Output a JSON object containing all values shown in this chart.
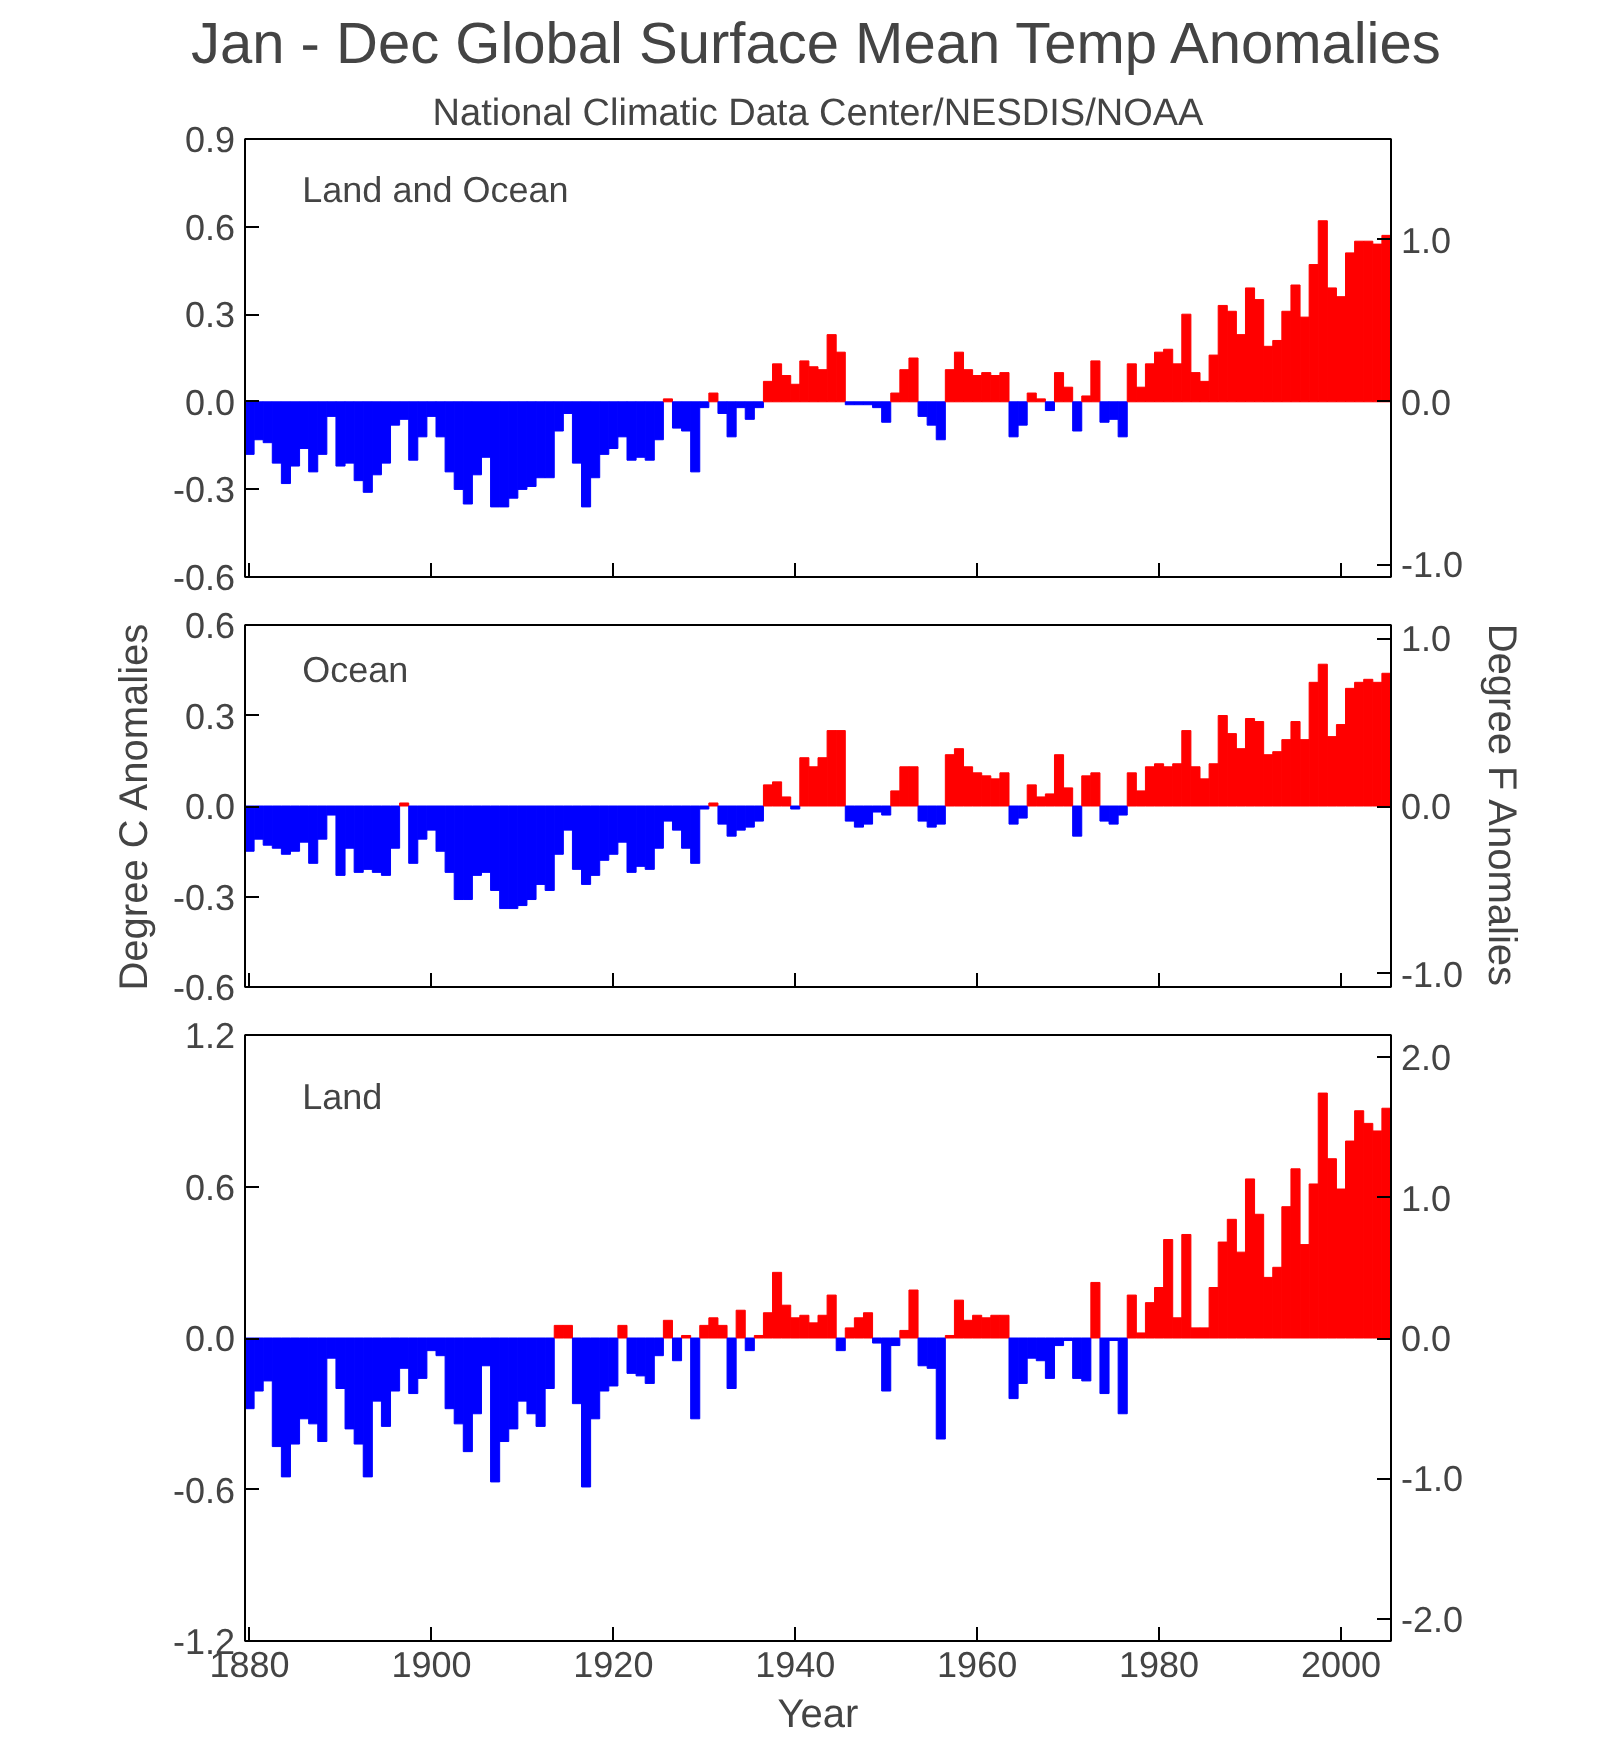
{
  "chart_data": [
    {
      "type": "bar",
      "title": "Jan - Dec Global Surface Mean Temp Anomalies",
      "subtitle": "National Climatic Data Center/NESDIS/NOAA",
      "annotations": [
        "Land and Ocean"
      ],
      "x": [
        1880,
        1881,
        1882,
        1883,
        1884,
        1885,
        1886,
        1887,
        1888,
        1889,
        1890,
        1891,
        1892,
        1893,
        1894,
        1895,
        1896,
        1897,
        1898,
        1899,
        1900,
        1901,
        1902,
        1903,
        1904,
        1905,
        1906,
        1907,
        1908,
        1909,
        1910,
        1911,
        1912,
        1913,
        1914,
        1915,
        1916,
        1917,
        1918,
        1919,
        1920,
        1921,
        1922,
        1923,
        1924,
        1925,
        1926,
        1927,
        1928,
        1929,
        1930,
        1931,
        1932,
        1933,
        1934,
        1935,
        1936,
        1937,
        1938,
        1939,
        1940,
        1941,
        1942,
        1943,
        1944,
        1945,
        1946,
        1947,
        1948,
        1949,
        1950,
        1951,
        1952,
        1953,
        1954,
        1955,
        1956,
        1957,
        1958,
        1959,
        1960,
        1961,
        1962,
        1963,
        1964,
        1965,
        1966,
        1967,
        1968,
        1969,
        1970,
        1971,
        1972,
        1973,
        1974,
        1975,
        1976,
        1977,
        1978,
        1979,
        1980,
        1981,
        1982,
        1983,
        1984,
        1985,
        1986,
        1987,
        1988,
        1989,
        1990,
        1991,
        1992,
        1993,
        1994,
        1995,
        1996,
        1997,
        1998,
        1999,
        2000,
        2001,
        2002,
        2003,
        2004,
        2005
      ],
      "values": [
        -0.18,
        -0.13,
        -0.14,
        -0.21,
        -0.28,
        -0.22,
        -0.16,
        -0.24,
        -0.18,
        -0.05,
        -0.22,
        -0.21,
        -0.27,
        -0.31,
        -0.25,
        -0.21,
        -0.08,
        -0.06,
        -0.2,
        -0.12,
        -0.05,
        -0.12,
        -0.24,
        -0.3,
        -0.35,
        -0.25,
        -0.19,
        -0.36,
        -0.36,
        -0.33,
        -0.3,
        -0.29,
        -0.26,
        -0.26,
        -0.1,
        -0.04,
        -0.21,
        -0.36,
        -0.26,
        -0.18,
        -0.16,
        -0.12,
        -0.2,
        -0.19,
        -0.2,
        -0.13,
        0.01,
        -0.09,
        -0.1,
        -0.24,
        -0.02,
        0.03,
        -0.04,
        -0.12,
        -0.02,
        -0.06,
        -0.02,
        0.07,
        0.13,
        0.09,
        0.06,
        0.14,
        0.12,
        0.11,
        0.23,
        0.17,
        -0.01,
        -0.01,
        -0.01,
        -0.02,
        -0.07,
        0.03,
        0.11,
        0.15,
        -0.05,
        -0.08,
        -0.13,
        0.11,
        0.17,
        0.11,
        0.09,
        0.1,
        0.09,
        0.1,
        -0.12,
        -0.08,
        0.03,
        0.01,
        -0.03,
        0.1,
        0.05,
        -0.1,
        0.02,
        0.14,
        -0.07,
        -0.06,
        -0.12,
        0.13,
        0.05,
        0.13,
        0.17,
        0.18,
        0.13,
        0.3,
        0.1,
        0.07,
        0.16,
        0.33,
        0.31,
        0.23,
        0.39,
        0.35,
        0.19,
        0.21,
        0.31,
        0.4,
        0.29,
        0.47,
        0.62,
        0.39,
        0.36,
        0.51,
        0.55,
        0.55,
        0.54,
        0.57
      ],
      "colors": [
        "#0000ff",
        "#0000ff",
        "#0000ff",
        "#0000ff",
        "#0000ff",
        "#0000ff",
        "#0000ff",
        "#0000ff",
        "#0000ff",
        "#0000ff",
        "#0000ff",
        "#0000ff",
        "#0000ff",
        "#0000ff",
        "#0000ff",
        "#0000ff",
        "#0000ff",
        "#0000ff",
        "#0000ff",
        "#0000ff",
        "#0000ff",
        "#0000ff",
        "#0000ff",
        "#0000ff",
        "#0000ff",
        "#0000ff",
        "#0000ff",
        "#0000ff",
        "#0000ff",
        "#0000ff",
        "#0000ff",
        "#0000ff",
        "#0000ff",
        "#0000ff",
        "#0000ff",
        "#0000ff",
        "#0000ff",
        "#0000ff",
        "#0000ff",
        "#0000ff",
        "#0000ff",
        "#0000ff",
        "#0000ff",
        "#0000ff",
        "#0000ff",
        "#0000ff",
        "#ff0000",
        "#0000ff",
        "#0000ff",
        "#0000ff",
        "#0000ff",
        "#ff0000",
        "#0000ff",
        "#0000ff",
        "#0000ff",
        "#0000ff",
        "#0000ff",
        "#ff0000",
        "#ff0000",
        "#ff0000",
        "#ff0000",
        "#ff0000",
        "#ff0000",
        "#ff0000",
        "#ff0000",
        "#ff0000",
        "#0000ff",
        "#0000ff",
        "#0000ff",
        "#0000ff",
        "#0000ff",
        "#ff0000",
        "#ff0000",
        "#ff0000",
        "#0000ff",
        "#0000ff",
        "#0000ff",
        "#ff0000",
        "#ff0000",
        "#ff0000",
        "#ff0000",
        "#ff0000",
        "#ff0000",
        "#ff0000",
        "#0000ff",
        "#0000ff",
        "#ff0000",
        "#ff0000",
        "#0000ff",
        "#ff0000",
        "#ff0000",
        "#0000ff",
        "#ff0000",
        "#ff0000",
        "#0000ff",
        "#0000ff",
        "#0000ff",
        "#ff0000",
        "#ff0000",
        "#ff0000",
        "#ff0000",
        "#ff0000",
        "#ff0000",
        "#ff0000",
        "#ff0000",
        "#ff0000",
        "#ff0000",
        "#ff0000",
        "#ff0000",
        "#ff0000",
        "#ff0000",
        "#ff0000",
        "#ff0000",
        "#ff0000",
        "#ff0000",
        "#ff0000",
        "#ff0000",
        "#ff0000",
        "#ff0000",
        "#ff0000",
        "#ff0000",
        "#ff0000",
        "#ff0000",
        "#ff0000",
        "#ff0000",
        "#ff0000"
      ],
      "xlim": [
        1879.5,
        2005.5
      ],
      "xticks": [
        1880,
        1900,
        1920,
        1940,
        1960,
        1980,
        2000
      ],
      "ylim": [
        -0.6,
        0.9
      ],
      "yticks": [
        {
          "value": -0.6,
          "label": "-0.6"
        },
        {
          "value": -0.3,
          "label": "-0.3"
        },
        {
          "value": 0,
          "label": "0.0"
        },
        {
          "value": 0.3,
          "label": "0.3"
        },
        {
          "value": 0.6,
          "label": "0.6"
        },
        {
          "value": 0.9,
          "label": "0.9"
        }
      ],
      "y2lim": [
        -1.08,
        1.62
      ],
      "y2ticks": [
        {
          "value": -1,
          "label": "-1.0"
        },
        {
          "value": 0,
          "label": "0.0"
        },
        {
          "value": 1,
          "label": "1.0"
        }
      ],
      "tick_labels": "y"
    },
    {
      "type": "bar",
      "ylabel": "Degree C Anomalies",
      "y2label": "Degree F Anomalies",
      "annotations": [
        "Ocean"
      ],
      "x": [
        1880,
        1881,
        1882,
        1883,
        1884,
        1885,
        1886,
        1887,
        1888,
        1889,
        1890,
        1891,
        1892,
        1893,
        1894,
        1895,
        1896,
        1897,
        1898,
        1899,
        1900,
        1901,
        1902,
        1903,
        1904,
        1905,
        1906,
        1907,
        1908,
        1909,
        1910,
        1911,
        1912,
        1913,
        1914,
        1915,
        1916,
        1917,
        1918,
        1919,
        1920,
        1921,
        1922,
        1923,
        1924,
        1925,
        1926,
        1927,
        1928,
        1929,
        1930,
        1931,
        1932,
        1933,
        1934,
        1935,
        1936,
        1937,
        1938,
        1939,
        1940,
        1941,
        1942,
        1943,
        1944,
        1945,
        1946,
        1947,
        1948,
        1949,
        1950,
        1951,
        1952,
        1953,
        1954,
        1955,
        1956,
        1957,
        1958,
        1959,
        1960,
        1961,
        1962,
        1963,
        1964,
        1965,
        1966,
        1967,
        1968,
        1969,
        1970,
        1971,
        1972,
        1973,
        1974,
        1975,
        1976,
        1977,
        1978,
        1979,
        1980,
        1981,
        1982,
        1983,
        1984,
        1985,
        1986,
        1987,
        1988,
        1989,
        1990,
        1991,
        1992,
        1993,
        1994,
        1995,
        1996,
        1997,
        1998,
        1999,
        2000,
        2001,
        2002,
        2003,
        2004,
        2005
      ],
      "values": [
        -0.15,
        -0.11,
        -0.13,
        -0.14,
        -0.16,
        -0.15,
        -0.12,
        -0.19,
        -0.11,
        -0.03,
        -0.23,
        -0.14,
        -0.22,
        -0.21,
        -0.22,
        -0.23,
        -0.14,
        0.01,
        -0.19,
        -0.11,
        -0.08,
        -0.15,
        -0.22,
        -0.31,
        -0.31,
        -0.23,
        -0.22,
        -0.28,
        -0.34,
        -0.34,
        -0.33,
        -0.31,
        -0.26,
        -0.28,
        -0.16,
        -0.08,
        -0.21,
        -0.26,
        -0.23,
        -0.18,
        -0.16,
        -0.12,
        -0.22,
        -0.2,
        -0.21,
        -0.14,
        -0.05,
        -0.08,
        -0.14,
        -0.19,
        -0.01,
        0.01,
        -0.06,
        -0.1,
        -0.08,
        -0.07,
        -0.05,
        0.07,
        0.08,
        0.03,
        -0.01,
        0.16,
        0.13,
        0.16,
        0.25,
        0.25,
        -0.05,
        -0.07,
        -0.06,
        -0.02,
        -0.03,
        0.05,
        0.13,
        0.13,
        -0.05,
        -0.07,
        -0.06,
        0.17,
        0.19,
        0.13,
        0.11,
        0.1,
        0.09,
        0.11,
        -0.06,
        -0.04,
        0.07,
        0.03,
        0.04,
        0.17,
        0.06,
        -0.1,
        0.1,
        0.11,
        -0.05,
        -0.06,
        -0.03,
        0.11,
        0.05,
        0.13,
        0.14,
        0.13,
        0.14,
        0.25,
        0.13,
        0.09,
        0.14,
        0.3,
        0.24,
        0.19,
        0.29,
        0.28,
        0.17,
        0.18,
        0.22,
        0.28,
        0.22,
        0.41,
        0.47,
        0.23,
        0.27,
        0.39,
        0.41,
        0.42,
        0.41,
        0.44
      ],
      "colors": [
        "#0000ff",
        "#0000ff",
        "#0000ff",
        "#0000ff",
        "#0000ff",
        "#0000ff",
        "#0000ff",
        "#0000ff",
        "#0000ff",
        "#0000ff",
        "#0000ff",
        "#0000ff",
        "#0000ff",
        "#0000ff",
        "#0000ff",
        "#0000ff",
        "#0000ff",
        "#ff0000",
        "#0000ff",
        "#0000ff",
        "#0000ff",
        "#0000ff",
        "#0000ff",
        "#0000ff",
        "#0000ff",
        "#0000ff",
        "#0000ff",
        "#0000ff",
        "#0000ff",
        "#0000ff",
        "#0000ff",
        "#0000ff",
        "#0000ff",
        "#0000ff",
        "#0000ff",
        "#0000ff",
        "#0000ff",
        "#0000ff",
        "#0000ff",
        "#0000ff",
        "#0000ff",
        "#0000ff",
        "#0000ff",
        "#0000ff",
        "#0000ff",
        "#0000ff",
        "#0000ff",
        "#0000ff",
        "#0000ff",
        "#0000ff",
        "#0000ff",
        "#ff0000",
        "#0000ff",
        "#0000ff",
        "#0000ff",
        "#0000ff",
        "#0000ff",
        "#ff0000",
        "#ff0000",
        "#ff0000",
        "#0000ff",
        "#ff0000",
        "#ff0000",
        "#ff0000",
        "#ff0000",
        "#ff0000",
        "#0000ff",
        "#0000ff",
        "#0000ff",
        "#0000ff",
        "#0000ff",
        "#ff0000",
        "#ff0000",
        "#ff0000",
        "#0000ff",
        "#0000ff",
        "#0000ff",
        "#ff0000",
        "#ff0000",
        "#ff0000",
        "#ff0000",
        "#ff0000",
        "#ff0000",
        "#ff0000",
        "#0000ff",
        "#0000ff",
        "#ff0000",
        "#ff0000",
        "#ff0000",
        "#ff0000",
        "#ff0000",
        "#0000ff",
        "#ff0000",
        "#ff0000",
        "#0000ff",
        "#0000ff",
        "#0000ff",
        "#ff0000",
        "#ff0000",
        "#ff0000",
        "#ff0000",
        "#ff0000",
        "#ff0000",
        "#ff0000",
        "#ff0000",
        "#ff0000",
        "#ff0000",
        "#ff0000",
        "#ff0000",
        "#ff0000",
        "#ff0000",
        "#ff0000",
        "#ff0000",
        "#ff0000",
        "#ff0000",
        "#ff0000",
        "#ff0000",
        "#ff0000",
        "#ff0000",
        "#ff0000",
        "#ff0000",
        "#ff0000",
        "#ff0000",
        "#ff0000",
        "#ff0000",
        "#ff0000"
      ],
      "xlim": [
        1879.5,
        2005.5
      ],
      "xticks": [
        1880,
        1900,
        1920,
        1940,
        1960,
        1980,
        2000
      ],
      "ylim": [
        -0.6,
        0.6
      ],
      "yticks": [
        {
          "value": -0.6,
          "label": "-0.6"
        },
        {
          "value": -0.3,
          "label": "-0.3"
        },
        {
          "value": 0,
          "label": "0.0"
        },
        {
          "value": 0.3,
          "label": "0.3"
        },
        {
          "value": 0.6,
          "label": "0.6"
        }
      ],
      "y2lim": [
        -1.08,
        1.08
      ],
      "y2ticks": [
        {
          "value": -1,
          "label": "-1.0"
        },
        {
          "value": 0,
          "label": "0.0"
        },
        {
          "value": 1,
          "label": "1.0"
        }
      ],
      "tick_labels": "y"
    },
    {
      "type": "bar",
      "xlabel": "Year",
      "annotations": [
        "Land"
      ],
      "x": [
        1880,
        1881,
        1882,
        1883,
        1884,
        1885,
        1886,
        1887,
        1888,
        1889,
        1890,
        1891,
        1892,
        1893,
        1894,
        1895,
        1896,
        1897,
        1898,
        1899,
        1900,
        1901,
        1902,
        1903,
        1904,
        1905,
        1906,
        1907,
        1908,
        1909,
        1910,
        1911,
        1912,
        1913,
        1914,
        1915,
        1916,
        1917,
        1918,
        1919,
        1920,
        1921,
        1922,
        1923,
        1924,
        1925,
        1926,
        1927,
        1928,
        1929,
        1930,
        1931,
        1932,
        1933,
        1934,
        1935,
        1936,
        1937,
        1938,
        1939,
        1940,
        1941,
        1942,
        1943,
        1944,
        1945,
        1946,
        1947,
        1948,
        1949,
        1950,
        1951,
        1952,
        1953,
        1954,
        1955,
        1956,
        1957,
        1958,
        1959,
        1960,
        1961,
        1962,
        1963,
        1964,
        1965,
        1966,
        1967,
        1968,
        1969,
        1970,
        1971,
        1972,
        1973,
        1974,
        1975,
        1976,
        1977,
        1978,
        1979,
        1980,
        1981,
        1982,
        1983,
        1984,
        1985,
        1986,
        1987,
        1988,
        1989,
        1990,
        1991,
        1992,
        1993,
        1994,
        1995,
        1996,
        1997,
        1998,
        1999,
        2000,
        2001,
        2002,
        2003,
        2004,
        2005
      ],
      "values": [
        -0.28,
        -0.21,
        -0.17,
        -0.43,
        -0.55,
        -0.42,
        -0.32,
        -0.34,
        -0.41,
        -0.08,
        -0.2,
        -0.36,
        -0.42,
        -0.55,
        -0.25,
        -0.35,
        -0.21,
        -0.12,
        -0.22,
        -0.16,
        -0.05,
        -0.07,
        -0.28,
        -0.34,
        -0.45,
        -0.3,
        -0.11,
        -0.57,
        -0.41,
        -0.36,
        -0.25,
        -0.3,
        -0.35,
        -0.2,
        0.05,
        0.05,
        -0.26,
        -0.59,
        -0.32,
        -0.21,
        -0.19,
        0.05,
        -0.14,
        -0.15,
        -0.18,
        -0.07,
        0.07,
        -0.09,
        0.01,
        -0.32,
        0.05,
        0.08,
        0.05,
        -0.2,
        0.11,
        -0.05,
        0.01,
        0.1,
        0.26,
        0.13,
        0.08,
        0.09,
        0.06,
        0.09,
        0.17,
        -0.05,
        0.04,
        0.08,
        0.1,
        -0.02,
        -0.21,
        -0.03,
        0.03,
        0.19,
        -0.11,
        -0.12,
        -0.4,
        0.01,
        0.15,
        0.07,
        0.09,
        0.08,
        0.09,
        0.09,
        -0.24,
        -0.18,
        -0.08,
        -0.09,
        -0.16,
        -0.03,
        -0.01,
        -0.16,
        -0.17,
        0.22,
        -0.22,
        -0.01,
        -0.3,
        0.17,
        0.02,
        0.14,
        0.2,
        0.39,
        0.08,
        0.41,
        0.04,
        0.04,
        0.2,
        0.38,
        0.47,
        0.34,
        0.63,
        0.49,
        0.24,
        0.28,
        0.52,
        0.67,
        0.37,
        0.61,
        0.97,
        0.71,
        0.59,
        0.78,
        0.9,
        0.85,
        0.82,
        0.91
      ],
      "colors": [
        "#0000ff",
        "#0000ff",
        "#0000ff",
        "#0000ff",
        "#0000ff",
        "#0000ff",
        "#0000ff",
        "#0000ff",
        "#0000ff",
        "#0000ff",
        "#0000ff",
        "#0000ff",
        "#0000ff",
        "#0000ff",
        "#0000ff",
        "#0000ff",
        "#0000ff",
        "#0000ff",
        "#0000ff",
        "#0000ff",
        "#0000ff",
        "#0000ff",
        "#0000ff",
        "#0000ff",
        "#0000ff",
        "#0000ff",
        "#0000ff",
        "#0000ff",
        "#0000ff",
        "#0000ff",
        "#0000ff",
        "#0000ff",
        "#0000ff",
        "#0000ff",
        "#ff0000",
        "#ff0000",
        "#0000ff",
        "#0000ff",
        "#0000ff",
        "#0000ff",
        "#0000ff",
        "#ff0000",
        "#0000ff",
        "#0000ff",
        "#0000ff",
        "#0000ff",
        "#ff0000",
        "#0000ff",
        "#ff0000",
        "#0000ff",
        "#ff0000",
        "#ff0000",
        "#ff0000",
        "#0000ff",
        "#ff0000",
        "#0000ff",
        "#ff0000",
        "#ff0000",
        "#ff0000",
        "#ff0000",
        "#ff0000",
        "#ff0000",
        "#ff0000",
        "#ff0000",
        "#ff0000",
        "#0000ff",
        "#ff0000",
        "#ff0000",
        "#ff0000",
        "#0000ff",
        "#0000ff",
        "#0000ff",
        "#ff0000",
        "#ff0000",
        "#0000ff",
        "#0000ff",
        "#0000ff",
        "#ff0000",
        "#ff0000",
        "#ff0000",
        "#ff0000",
        "#ff0000",
        "#ff0000",
        "#ff0000",
        "#0000ff",
        "#0000ff",
        "#0000ff",
        "#0000ff",
        "#0000ff",
        "#0000ff",
        "#0000ff",
        "#0000ff",
        "#0000ff",
        "#ff0000",
        "#0000ff",
        "#0000ff",
        "#0000ff",
        "#ff0000",
        "#ff0000",
        "#ff0000",
        "#ff0000",
        "#ff0000",
        "#ff0000",
        "#ff0000",
        "#ff0000",
        "#ff0000",
        "#ff0000",
        "#ff0000",
        "#ff0000",
        "#ff0000",
        "#ff0000",
        "#ff0000",
        "#ff0000",
        "#ff0000",
        "#ff0000",
        "#ff0000",
        "#ff0000",
        "#ff0000",
        "#ff0000",
        "#ff0000",
        "#ff0000",
        "#ff0000",
        "#ff0000",
        "#ff0000",
        "#ff0000",
        "#ff0000"
      ],
      "xlim": [
        1879.5,
        2005.5
      ],
      "xticks": [
        1880,
        1900,
        1920,
        1940,
        1960,
        1980,
        2000
      ],
      "ylim": [
        -1.2,
        1.2
      ],
      "yticks": [
        {
          "value": -1.2,
          "label": "-1.2"
        },
        {
          "value": -0.6,
          "label": "-0.6"
        },
        {
          "value": 0,
          "label": "0.0"
        },
        {
          "value": 0.6,
          "label": "0.6"
        },
        {
          "value": 1.2,
          "label": "1.2"
        }
      ],
      "y2lim": [
        -2.16,
        2.16
      ],
      "y2ticks": [
        {
          "value": -2,
          "label": "-2.0"
        },
        {
          "value": -1,
          "label": "-1.0"
        },
        {
          "value": 0,
          "label": "0.0"
        },
        {
          "value": 1,
          "label": "1.0"
        },
        {
          "value": 2,
          "label": "2.0"
        }
      ]
    }
  ]
}
